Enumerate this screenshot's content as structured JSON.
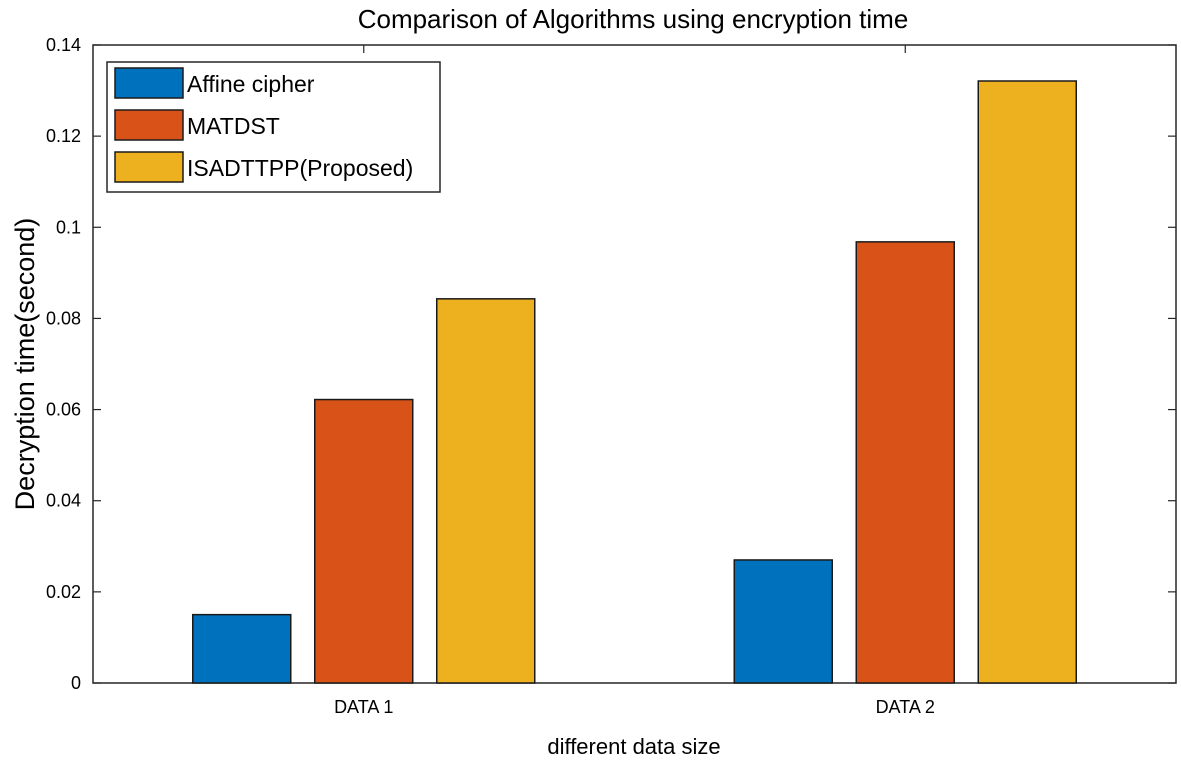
{
  "chart_data": {
    "type": "bar",
    "title": "Comparison of Algorithms using encryption time",
    "xlabel": "different data size",
    "ylabel": "Decryption time(second)",
    "categories": [
      "DATA 1",
      "DATA 2"
    ],
    "series": [
      {
        "name": "Affine cipher",
        "values": [
          0.015,
          0.027
        ],
        "color": "#0072BD"
      },
      {
        "name": "MATDST",
        "values": [
          0.0622,
          0.0968
        ],
        "color": "#D95319"
      },
      {
        "name": "ISADTTPP(Proposed)",
        "values": [
          0.0843,
          0.1321
        ],
        "color": "#EDB120"
      }
    ],
    "ylim": [
      0,
      0.14
    ],
    "yticks": [
      "0",
      "0.02",
      "0.04",
      "0.06",
      "0.08",
      "0.1",
      "0.12",
      "0.14"
    ],
    "grid": false,
    "legend_position": "top-left"
  }
}
